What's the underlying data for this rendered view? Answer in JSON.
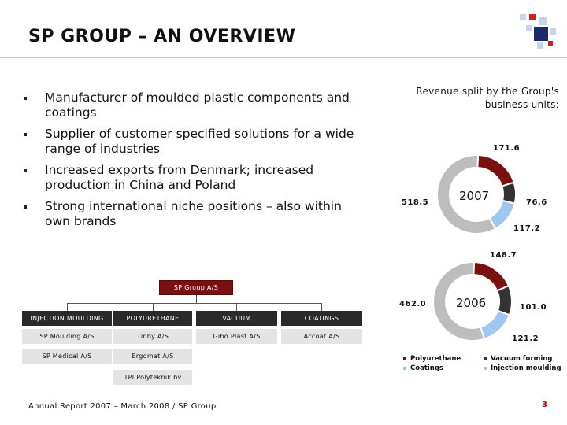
{
  "page": {
    "title": "SP GROUP – AN OVERVIEW",
    "footer": "Annual Report 2007 – March 2008 / SP Group",
    "page_number": "3"
  },
  "bullets": [
    "Manufacturer of moulded plastic components and coatings",
    "Supplier of customer specified solutions for a wide range of industries",
    "Increased exports from Denmark; increased production in China and Poland",
    "Strong international niche positions – also within own brands"
  ],
  "revenue": {
    "title_line1": "Revenue split by the Group's",
    "title_line2": "business units:"
  },
  "chart_data": [
    {
      "type": "pie",
      "center_label": "2007",
      "categories": [
        "Polyurethane",
        "Vacuum forming",
        "Coatings",
        "Injection moulding"
      ],
      "values": [
        171.6,
        76.6,
        117.2,
        518.5
      ],
      "labels": [
        "171.6",
        "76.6",
        "117.2",
        "518.5"
      ]
    },
    {
      "type": "pie",
      "center_label": "2006",
      "categories": [
        "Polyurethane",
        "Vacuum forming",
        "Coatings",
        "Injection moulding"
      ],
      "values": [
        148.7,
        101.0,
        121.2,
        462.0
      ],
      "labels": [
        "148.7",
        "101.0",
        "121.2",
        "462.0"
      ]
    }
  ],
  "legend": {
    "items": [
      {
        "label": "Polyurethane",
        "color": "#7b1010"
      },
      {
        "label": "Vacuum forming",
        "color": "#333333"
      },
      {
        "label": "Coatings",
        "color": "#9ec8ee"
      },
      {
        "label": "Injection moulding",
        "color": "#bdbdbd"
      }
    ]
  },
  "colors": {
    "polyurethane": "#7b1010",
    "vacuum": "#333333",
    "coatings": "#9ec8ee",
    "injection": "#bdbdbd",
    "accent": "#c00000"
  },
  "org": {
    "top": "SP Group A/S",
    "columns": [
      {
        "head": "INJECTION MOULDING",
        "items": [
          "SP Moulding A/S",
          "SP Medical A/S"
        ]
      },
      {
        "head": "POLYURETHANE",
        "items": [
          "Tinby A/S",
          "Ergomat A/S",
          "TPI Polyteknik bv"
        ]
      },
      {
        "head": "VACUUM",
        "items": [
          "Gibo Plast A/S"
        ]
      },
      {
        "head": "COATINGS",
        "items": [
          "Accoat A/S"
        ]
      }
    ]
  }
}
